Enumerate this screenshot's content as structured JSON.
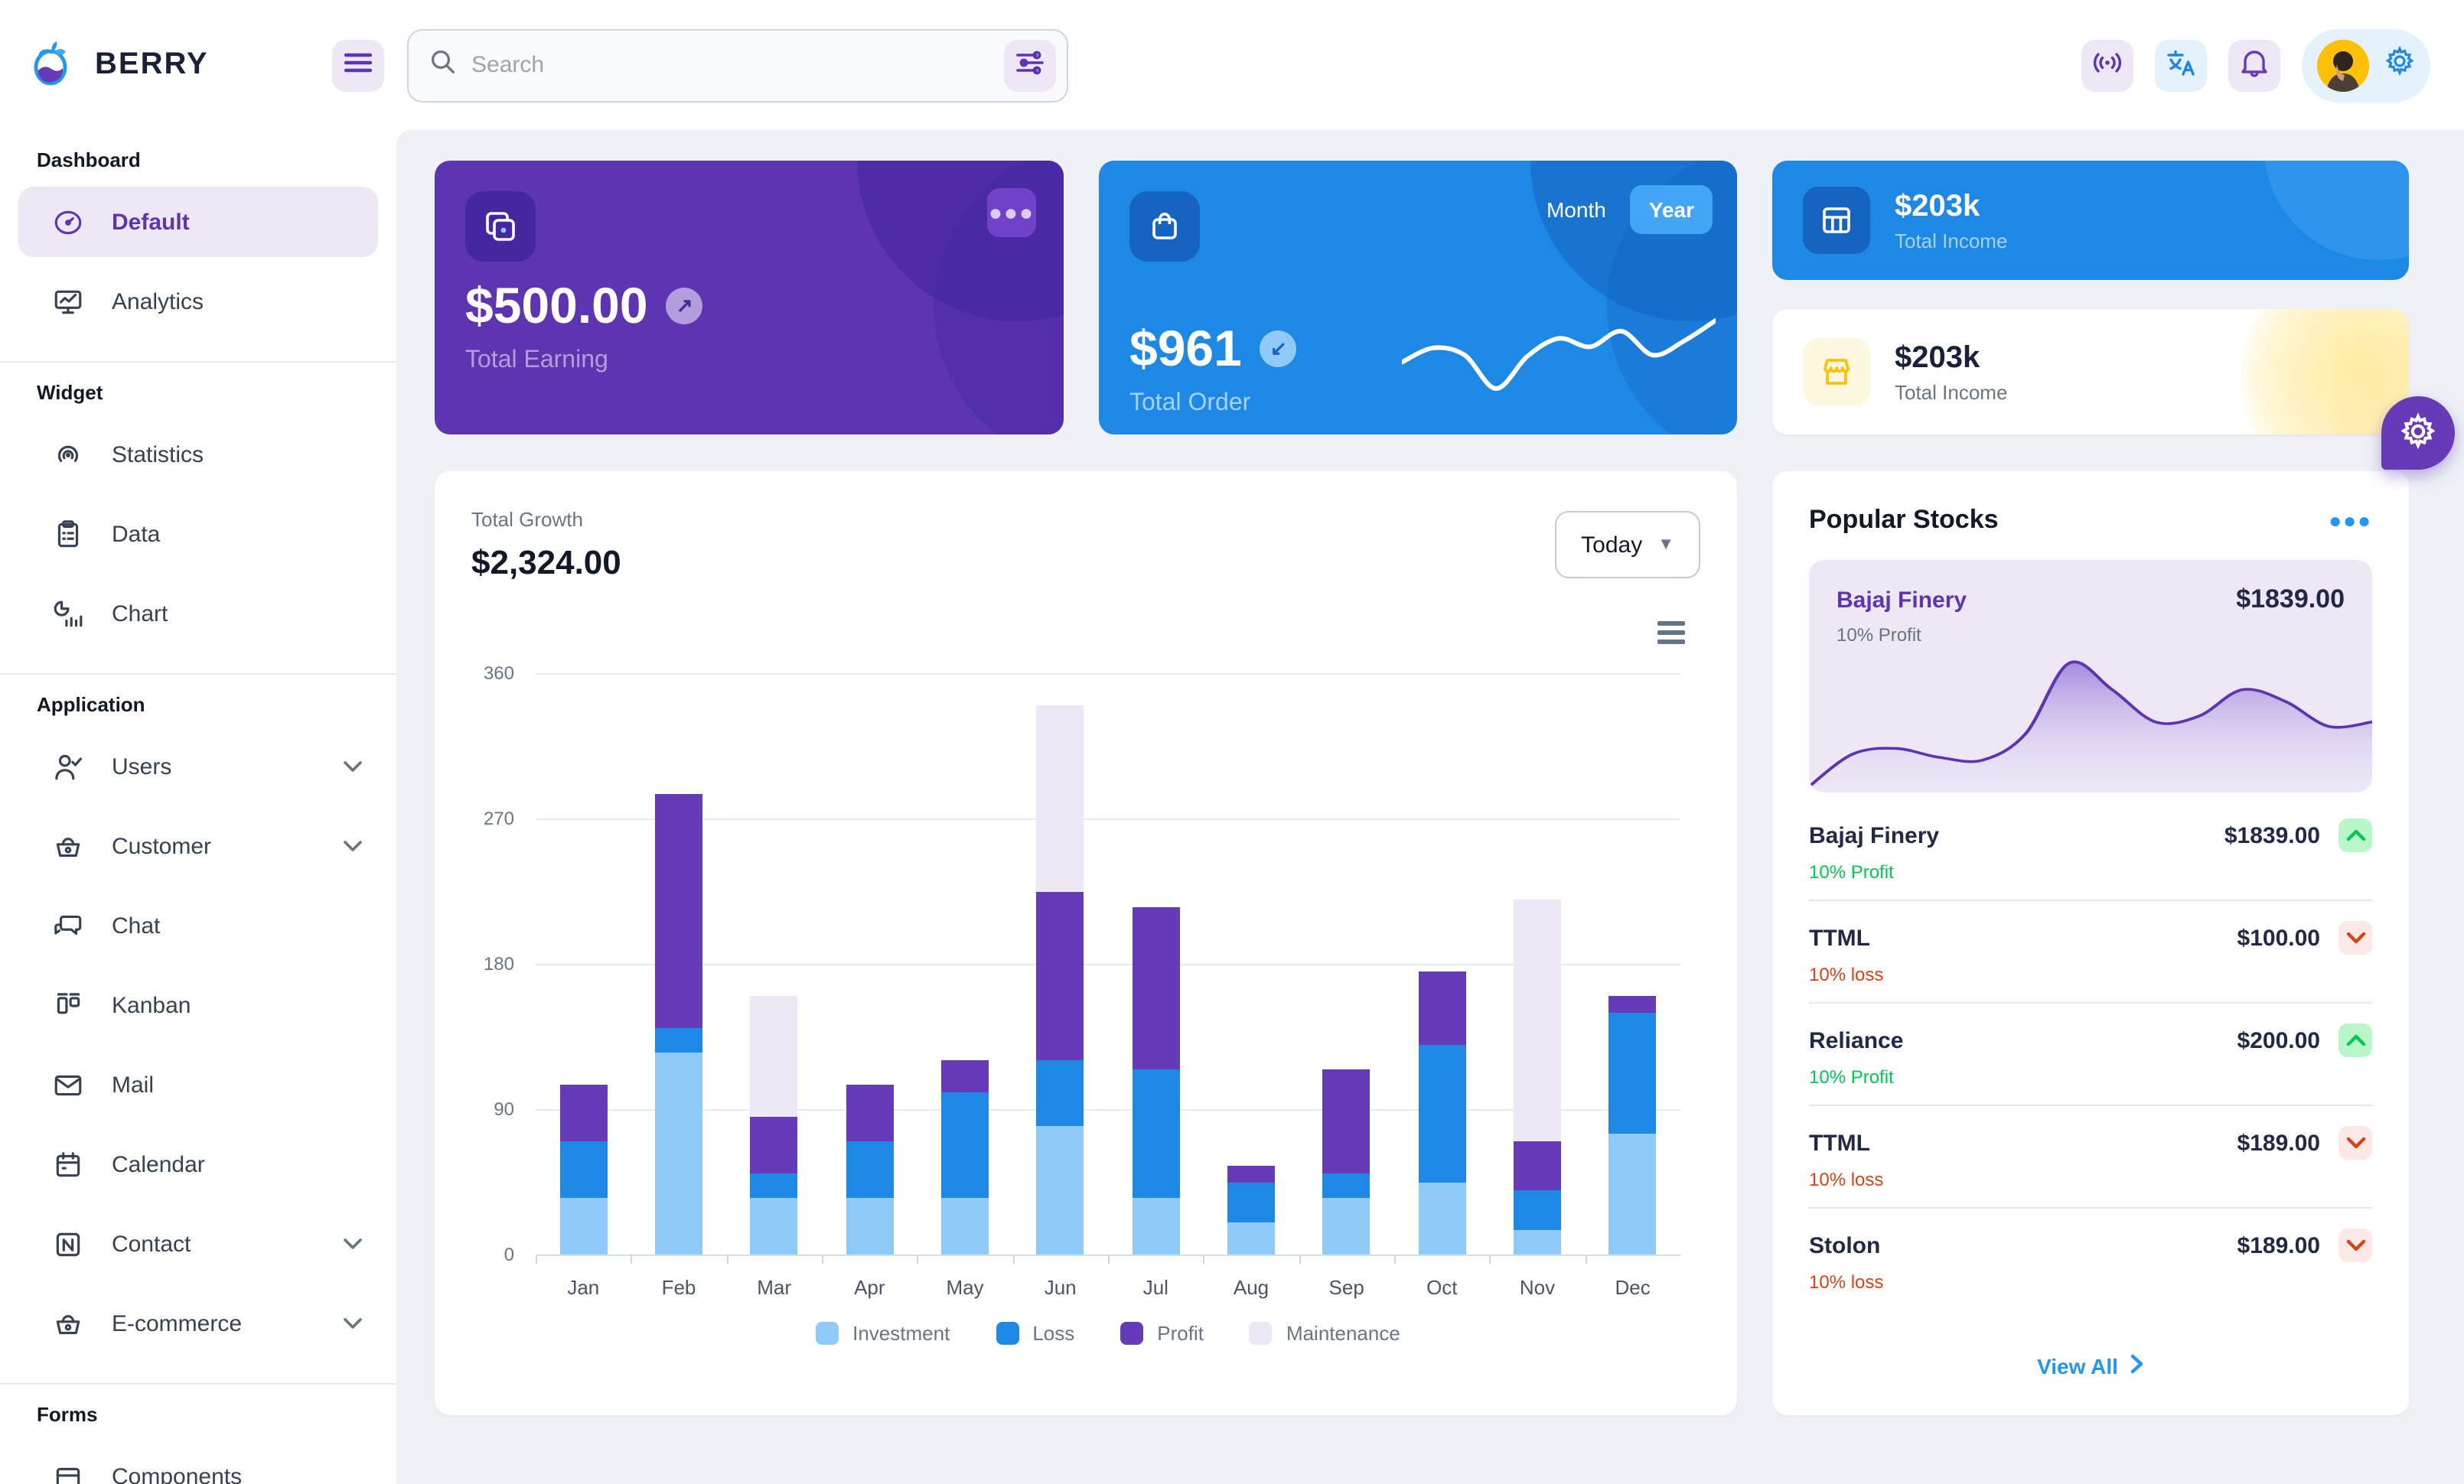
{
  "header": {
    "brand": "BERRY",
    "search": {
      "placeholder": "Search"
    },
    "icons": [
      "hamburger-icon",
      "search-icon",
      "filter-sliders-icon",
      "broadcast-icon",
      "translate-icon",
      "bell-icon",
      "avatar",
      "gear-icon"
    ]
  },
  "sidebar": {
    "sections": [
      {
        "title": "Dashboard",
        "items": [
          {
            "label": "Default",
            "icon": "gauge",
            "active": true
          },
          {
            "label": "Analytics",
            "icon": "monitor"
          }
        ]
      },
      {
        "title": "Widget",
        "items": [
          {
            "label": "Statistics",
            "icon": "statistics"
          },
          {
            "label": "Data",
            "icon": "clipboard"
          },
          {
            "label": "Chart",
            "icon": "chart"
          }
        ]
      },
      {
        "title": "Application",
        "items": [
          {
            "label": "Users",
            "icon": "user-check",
            "chevron": true
          },
          {
            "label": "Customer",
            "icon": "basket",
            "chevron": true
          },
          {
            "label": "Chat",
            "icon": "chat"
          },
          {
            "label": "Kanban",
            "icon": "kanban"
          },
          {
            "label": "Mail",
            "icon": "mail"
          },
          {
            "label": "Calendar",
            "icon": "calendar"
          },
          {
            "label": "Contact",
            "icon": "contact",
            "chevron": true
          },
          {
            "label": "E-commerce",
            "icon": "basket",
            "chevron": true
          }
        ]
      },
      {
        "title": "Forms",
        "items": [
          {
            "label": "Components",
            "icon": "components"
          }
        ]
      }
    ]
  },
  "cards": {
    "earning": {
      "value": "$500.00",
      "label": "Total Earning"
    },
    "order": {
      "value": "$961",
      "label": "Total Order",
      "toggle": [
        "Month",
        "Year"
      ],
      "selected": "Year",
      "trend": [
        40,
        52,
        46,
        18,
        45,
        60,
        53,
        66,
        46,
        58,
        75
      ]
    },
    "income_blue": {
      "value": "$203k",
      "label": "Total Income"
    },
    "income_light": {
      "value": "$203k",
      "label": "Total Income"
    }
  },
  "growth": {
    "label": "Total Growth",
    "value": "$2,324.00",
    "range": "Today"
  },
  "chart_data": [
    {
      "type": "bar",
      "stacked": true,
      "title": "Total Growth",
      "categories": [
        "Jan",
        "Feb",
        "Mar",
        "Apr",
        "May",
        "Jun",
        "Jul",
        "Aug",
        "Sep",
        "Oct",
        "Nov",
        "Dec"
      ],
      "series": [
        {
          "name": "Investment",
          "color": "#90caf9",
          "values": [
            35,
            125,
            35,
            35,
            35,
            80,
            35,
            20,
            35,
            45,
            15,
            75
          ]
        },
        {
          "name": "Loss",
          "color": "#1e88e5",
          "values": [
            35,
            15,
            15,
            35,
            65,
            40,
            80,
            25,
            15,
            85,
            25,
            75
          ]
        },
        {
          "name": "Profit",
          "color": "#673ab7",
          "values": [
            35,
            145,
            35,
            35,
            20,
            105,
            100,
            10,
            65,
            45,
            30,
            10
          ]
        },
        {
          "name": "Maintenance",
          "color": "#ede7f6",
          "values": [
            0,
            0,
            75,
            0,
            0,
            115,
            0,
            0,
            0,
            0,
            150,
            0
          ]
        }
      ],
      "ylim": [
        0,
        360
      ],
      "yticks": [
        0,
        90,
        180,
        270,
        360
      ],
      "grid": true,
      "legend_position": "bottom"
    },
    {
      "type": "area",
      "title": "Bajaj Finery trend (relative)",
      "values": [
        4,
        26,
        30,
        24,
        22,
        40,
        88,
        70,
        48,
        52,
        70,
        62,
        45,
        48
      ],
      "color": "#5e35b1"
    },
    {
      "type": "line",
      "title": "Total Order trend (relative)",
      "values": [
        40,
        52,
        46,
        18,
        45,
        60,
        53,
        66,
        46,
        58,
        75
      ],
      "color": "#ffffff"
    }
  ],
  "stocks": {
    "title": "Popular Stocks",
    "featured": {
      "name": "Bajaj Finery",
      "price": "$1839.00",
      "sub": "10% Profit"
    },
    "rows": [
      {
        "name": "Bajaj Finery",
        "price": "$1839.00",
        "sub": "10% Profit",
        "dir": "up"
      },
      {
        "name": "TTML",
        "price": "$100.00",
        "sub": "10% loss",
        "dir": "down"
      },
      {
        "name": "Reliance",
        "price": "$200.00",
        "sub": "10% Profit",
        "dir": "up"
      },
      {
        "name": "TTML",
        "price": "$189.00",
        "sub": "10% loss",
        "dir": "down"
      },
      {
        "name": "Stolon",
        "price": "$189.00",
        "sub": "10% loss",
        "dir": "down"
      }
    ],
    "view_all": "View All"
  },
  "colors": {
    "page_bg": "#eef2f6",
    "accent_purple": "#5e35b1",
    "accent_blue": "#1e88e5",
    "success": "#00c853",
    "loss": "#d84315",
    "warning": "#ffc107"
  }
}
